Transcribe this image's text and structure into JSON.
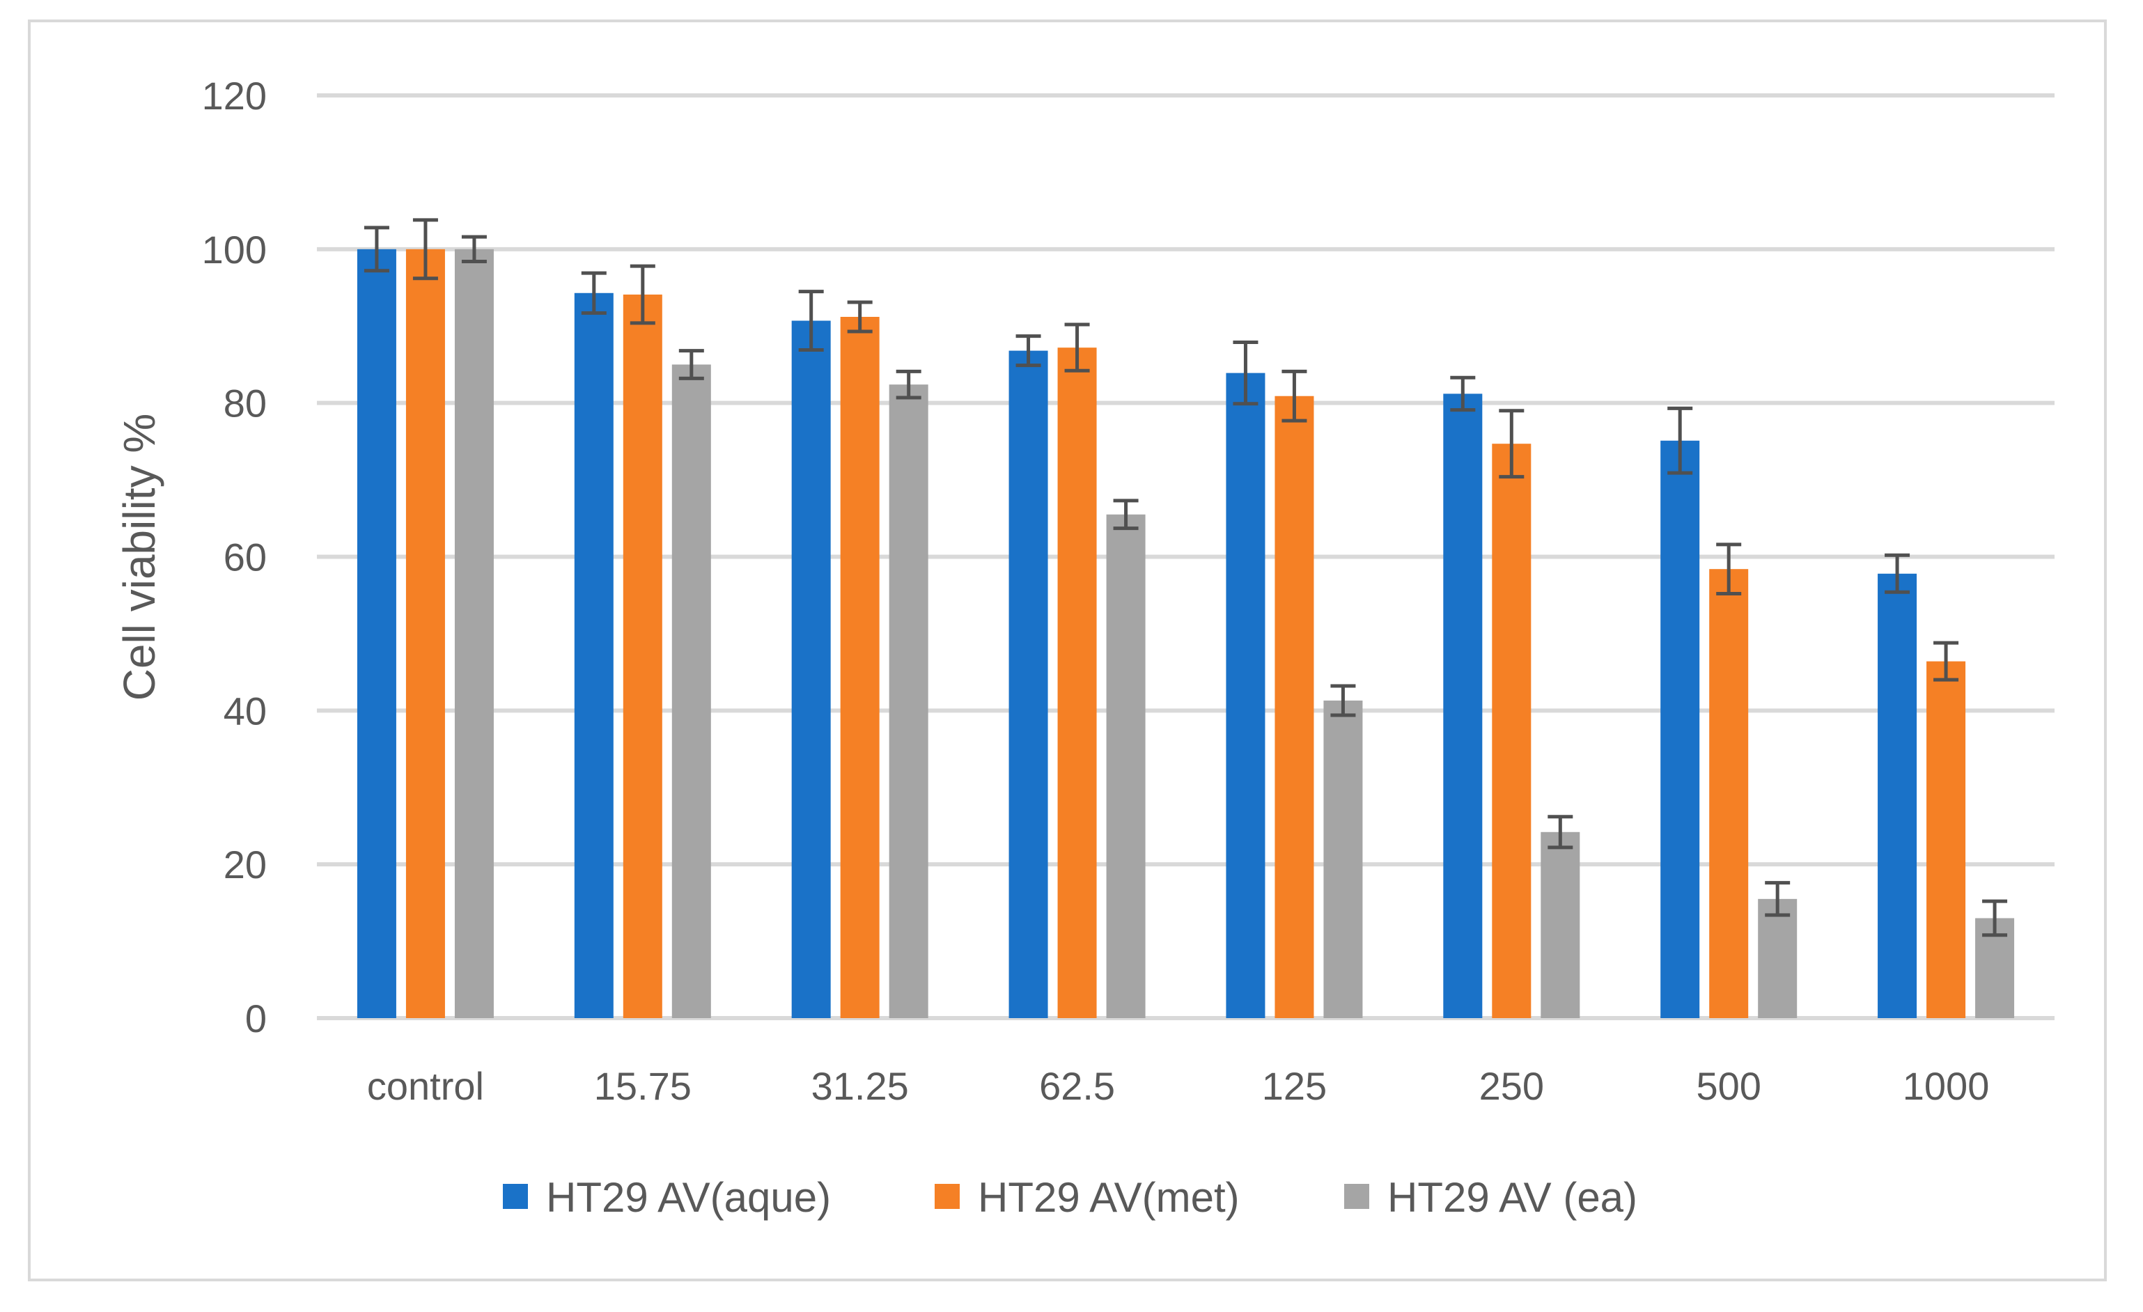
{
  "chart_data": {
    "type": "bar",
    "title": "",
    "xlabel": "",
    "ylabel": "Cell viability %",
    "ylim": [
      0,
      120
    ],
    "yticks": [
      0,
      20,
      40,
      60,
      80,
      100,
      120
    ],
    "grid": true,
    "legend_position": "bottom",
    "categories": [
      "control",
      "15.75",
      "31.25",
      "62.5",
      "125",
      "250",
      "500",
      "1000"
    ],
    "series": [
      {
        "name": "HT29 AV(aque)",
        "color": "#1a72c8",
        "values": [
          100,
          94.3,
          90.7,
          86.8,
          83.9,
          81.2,
          75.1,
          57.8
        ],
        "errors": [
          2.8,
          2.6,
          3.8,
          1.9,
          4.0,
          2.1,
          4.2,
          2.4
        ]
      },
      {
        "name": "HT29 AV(met)",
        "color": "#f58025",
        "values": [
          100,
          94.1,
          91.2,
          87.2,
          80.9,
          74.7,
          58.4,
          46.4
        ],
        "errors": [
          3.8,
          3.7,
          1.9,
          3.0,
          3.2,
          4.3,
          3.2,
          2.4
        ]
      },
      {
        "name": "HT29 AV (ea)",
        "color": "#a5a5a5",
        "values": [
          100,
          85.0,
          82.4,
          65.5,
          41.3,
          24.2,
          15.5,
          13.0
        ],
        "errors": [
          1.6,
          1.8,
          1.7,
          1.8,
          1.9,
          2.0,
          2.1,
          2.2
        ]
      }
    ]
  }
}
